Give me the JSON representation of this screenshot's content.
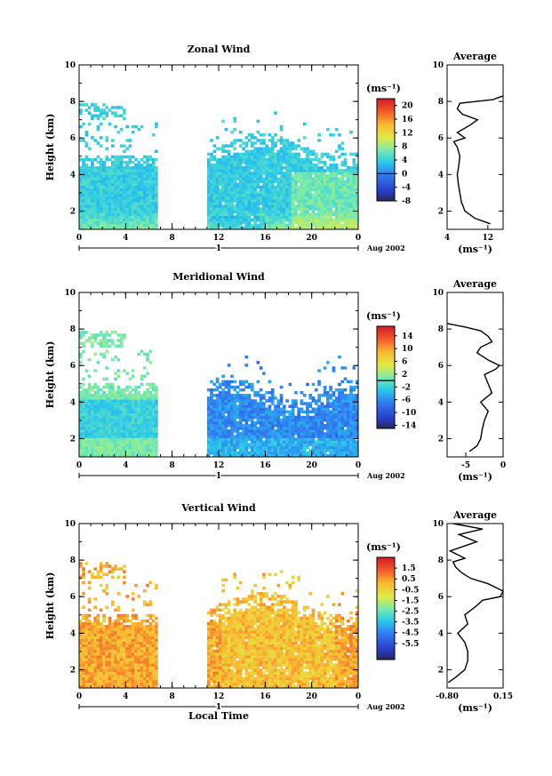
{
  "chart_data": [
    {
      "type": "heatmap",
      "title": "Zonal Wind",
      "xlabel": "",
      "ylabel": "Height (km)",
      "xlim": [
        0,
        24
      ],
      "ylim": [
        1,
        10
      ],
      "xticks": [
        "0",
        "4",
        "8",
        "12",
        "16",
        "20",
        "0"
      ],
      "yticks": [
        "2",
        "4",
        "6",
        "8",
        "10"
      ],
      "day_label": "1",
      "date_label": "Aug 2002",
      "unit": "(ms⁻¹)",
      "colorbar": {
        "min": -8,
        "max": 22,
        "ticks": [
          "20",
          "16",
          "12",
          "8",
          "4",
          "0",
          "-4",
          "-8"
        ],
        "tick_values": [
          20,
          16,
          12,
          8,
          4,
          0,
          -4,
          -8
        ],
        "zero_line": 0
      },
      "data_gap": [
        6.5,
        10.8
      ],
      "average": {
        "title": "Average",
        "xlabel": "(ms⁻¹)",
        "xticks": [
          "4",
          "12"
        ],
        "xtick_values": [
          4,
          12
        ],
        "xlim": [
          4,
          15
        ],
        "height": [
          1.3,
          1.6,
          2.0,
          2.5,
          3.0,
          3.5,
          4.0,
          4.5,
          5.0,
          5.5,
          5.8,
          6.0,
          6.3,
          6.7,
          7.0,
          7.3,
          7.6,
          7.9,
          8.1,
          8.3
        ],
        "value": [
          12.5,
          9.5,
          7.5,
          6.8,
          6.5,
          6.2,
          6.0,
          6.3,
          6.5,
          6.0,
          5.3,
          7.5,
          6.0,
          8.5,
          10.0,
          7.0,
          6.0,
          6.5,
          13.0,
          15.0
        ]
      }
    },
    {
      "type": "heatmap",
      "title": "Meridional Wind",
      "xlabel": "",
      "ylabel": "Height (km)",
      "xlim": [
        0,
        24
      ],
      "ylim": [
        1,
        10
      ],
      "xticks": [
        "0",
        "4",
        "8",
        "12",
        "16",
        "20",
        "0"
      ],
      "yticks": [
        "2",
        "4",
        "6",
        "8",
        "10"
      ],
      "day_label": "1",
      "date_label": "Aug 2002",
      "unit": "(ms⁻¹)",
      "colorbar": {
        "min": -15,
        "max": 17,
        "ticks": [
          "14",
          "10",
          "6",
          "2",
          "-2",
          "-6",
          "-10",
          "-14"
        ],
        "tick_values": [
          14,
          10,
          6,
          2,
          -2,
          -6,
          -10,
          -14
        ],
        "zero_line": 0
      },
      "data_gap": [
        6.5,
        10.8
      ],
      "average": {
        "title": "Average",
        "xlabel": "(ms⁻¹)",
        "xticks": [
          "-5",
          "0"
        ],
        "xtick_values": [
          -5,
          0
        ],
        "xlim": [
          -7.5,
          0
        ],
        "height": [
          1.3,
          1.6,
          2.0,
          2.5,
          3.0,
          3.5,
          4.0,
          4.5,
          5.0,
          5.5,
          5.8,
          6.0,
          6.3,
          6.7,
          7.0,
          7.3,
          7.6,
          7.9,
          8.1,
          8.3
        ],
        "value": [
          -4.5,
          -3.5,
          -3.0,
          -2.8,
          -2.5,
          -2.0,
          -3.0,
          -1.5,
          -2.0,
          -2.5,
          -1.0,
          -0.5,
          -2.0,
          -3.5,
          -3.0,
          -1.5,
          -2.0,
          -3.0,
          -5.0,
          -7.5
        ]
      }
    },
    {
      "type": "heatmap",
      "title": "Vertical Wind",
      "xlabel": "Local Time",
      "ylabel": "Height (km)",
      "xlim": [
        0,
        24
      ],
      "ylim": [
        1,
        10
      ],
      "xticks": [
        "0",
        "4",
        "8",
        "12",
        "16",
        "20",
        "0"
      ],
      "yticks": [
        "2",
        "4",
        "6",
        "8",
        "10"
      ],
      "day_label": "1",
      "date_label": "Aug 2002",
      "unit": "(ms⁻¹)",
      "colorbar": {
        "min": -7,
        "max": 2.5,
        "ticks": [
          "1.5",
          "0.5",
          "-0.5",
          "-1.5",
          "-2.5",
          "-3.5",
          "-4.5",
          "-5.5"
        ],
        "tick_values": [
          1.5,
          0.5,
          -0.5,
          -1.5,
          -2.5,
          -3.5,
          -4.5,
          -5.5
        ],
        "zero_line": null
      },
      "data_gap": [
        6.5,
        10.8
      ],
      "average": {
        "title": "Average",
        "xlabel": "(ms⁻¹)",
        "xticks": [
          "-0.80",
          "0.15"
        ],
        "xtick_values": [
          -0.8,
          0.15
        ],
        "xlim": [
          -0.8,
          0.15
        ],
        "height": [
          1.3,
          1.6,
          2.0,
          2.5,
          3.0,
          3.5,
          4.0,
          4.5,
          5.0,
          5.5,
          5.8,
          6.0,
          6.3,
          6.7,
          7.0,
          7.3,
          7.6,
          7.9,
          8.1,
          8.5,
          9.0,
          9.4,
          9.7,
          10.0
        ],
        "value": [
          -0.78,
          -0.65,
          -0.5,
          -0.45,
          -0.45,
          -0.5,
          -0.62,
          -0.45,
          -0.5,
          -0.3,
          -0.2,
          0.1,
          0.15,
          -0.1,
          -0.4,
          -0.55,
          -0.65,
          -0.7,
          -0.5,
          -0.75,
          -0.3,
          -0.6,
          -0.2,
          -0.7
        ]
      }
    }
  ]
}
